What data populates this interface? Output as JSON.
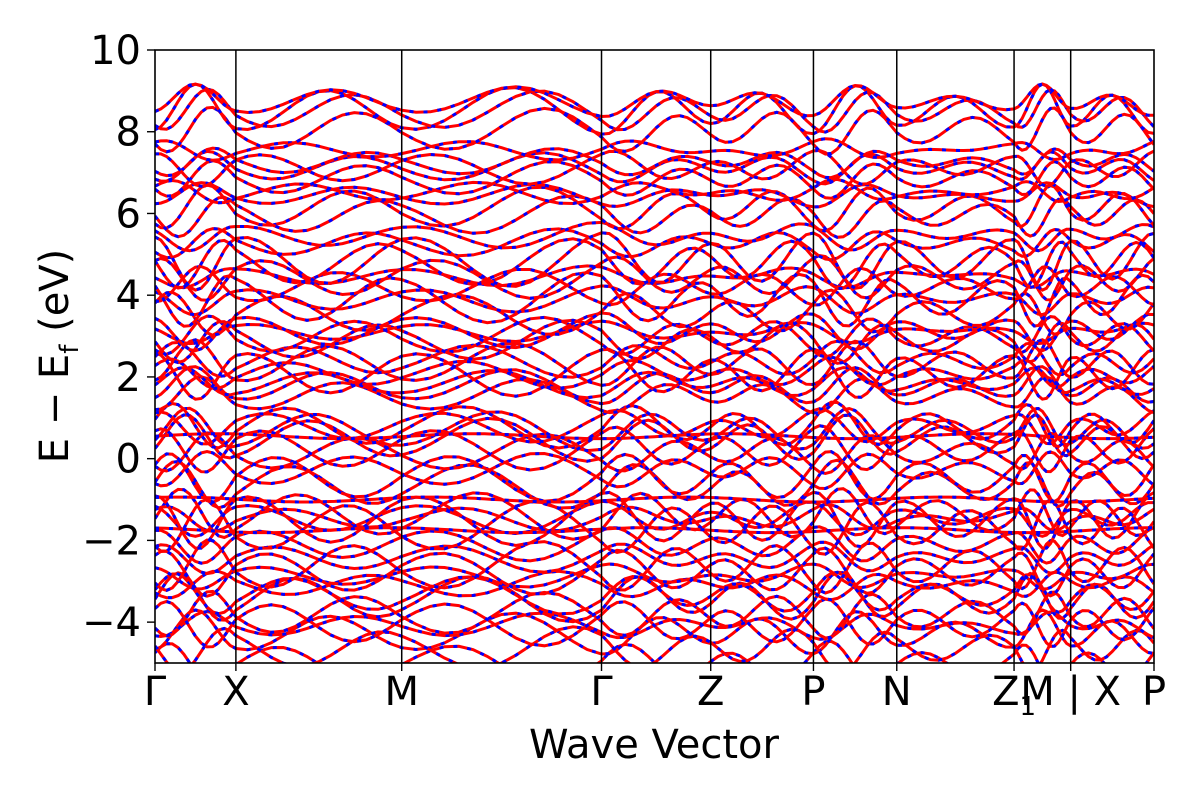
{
  "chart_data": {
    "type": "line",
    "title": "",
    "xlabel": "Wave Vector",
    "ylabel": "E − E",
    "ylabel_sub": "f",
    "ylabel_unit": "(eV)",
    "ylim": [
      -5,
      10
    ],
    "y_ticks": [
      -4,
      -2,
      0,
      2,
      4,
      6,
      8,
      10
    ],
    "y_tick_labels": [
      "−4",
      "−2",
      "0",
      "2",
      "4",
      "6",
      "8",
      "10"
    ],
    "x_range": [
      0,
      12.35
    ],
    "k_points": [
      {
        "label": "Γ",
        "pos": 0.0
      },
      {
        "label": "X",
        "pos": 1.0
      },
      {
        "label": "M",
        "pos": 3.05
      },
      {
        "label": "Γ",
        "pos": 5.52
      },
      {
        "label": "Z",
        "pos": 6.87
      },
      {
        "label": "P",
        "pos": 8.14
      },
      {
        "label": "N",
        "pos": 9.17
      },
      {
        "label": "Z",
        "pos": 10.62
      },
      {
        "label": "M | X",
        "pos": 11.32
      },
      {
        "label": "P",
        "pos": 12.35
      }
    ],
    "k_point_subscript": {
      "index": 7,
      "text": "1"
    },
    "grid": false,
    "legend": "none",
    "series": [
      {
        "color": "#ff0000",
        "style": "solid"
      },
      {
        "color": "#0000ff",
        "style": "dashed"
      }
    ],
    "bands_approx": {
      "band_count": 62,
      "energy_range": [
        -5,
        8.6
      ],
      "flat_band_energies": [
        0.55,
        -1.0,
        -1.75
      ]
    }
  },
  "colors": {
    "band_solid": "#ff0000",
    "band_dashed": "#0000ff",
    "axes": "#000000",
    "background": "#ffffff"
  }
}
